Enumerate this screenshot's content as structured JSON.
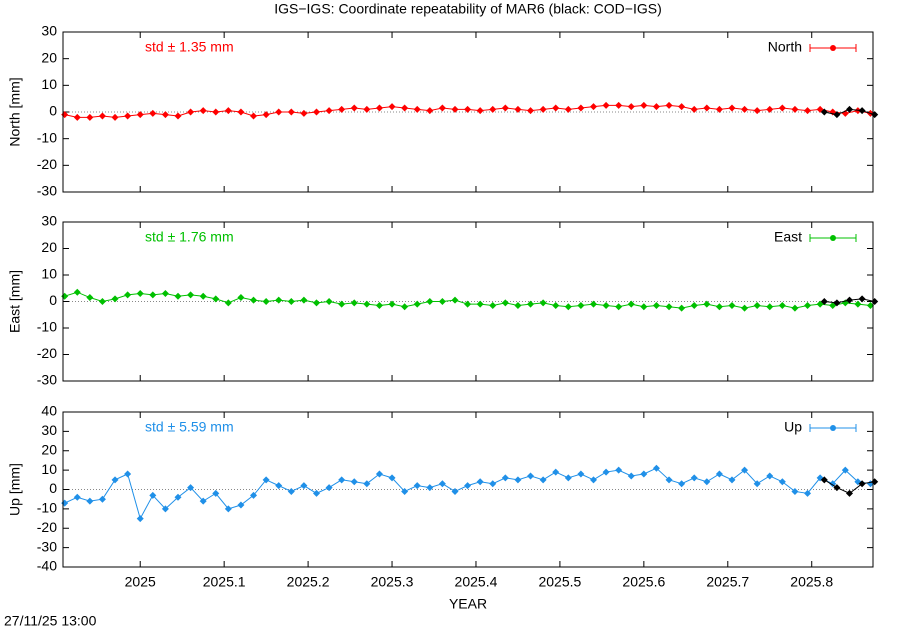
{
  "title": "IGS−IGS: Coordinate repeatability of MAR6 (black: COD−IGS)",
  "timestamp": "27/11/25 13:00",
  "chart_data": [
    {
      "type": "line",
      "ylabel": "North [mm]",
      "annotation": "std ± 1.35 mm",
      "legend": "upper right",
      "xlim": [
        2024.908,
        2025.873
      ],
      "xticks": [
        2025,
        2025.1,
        2025.2,
        2025.3,
        2025.4,
        2025.5,
        2025.6,
        2025.7,
        2025.8
      ],
      "show_xtick_labels": false,
      "ylim": [
        -30,
        30
      ],
      "yticks": [
        -30,
        -20,
        -10,
        0,
        10,
        20,
        30
      ],
      "x": [
        2024.91,
        2024.925,
        2024.94,
        2024.955,
        2024.97,
        2024.985,
        2025.0,
        2025.015,
        2025.03,
        2025.045,
        2025.06,
        2025.075,
        2025.09,
        2025.105,
        2025.12,
        2025.135,
        2025.15,
        2025.165,
        2025.18,
        2025.195,
        2025.21,
        2025.225,
        2025.24,
        2025.255,
        2025.27,
        2025.285,
        2025.3,
        2025.315,
        2025.33,
        2025.345,
        2025.36,
        2025.375,
        2025.39,
        2025.405,
        2025.42,
        2025.435,
        2025.45,
        2025.465,
        2025.48,
        2025.495,
        2025.51,
        2025.525,
        2025.54,
        2025.555,
        2025.57,
        2025.585,
        2025.6,
        2025.615,
        2025.63,
        2025.645,
        2025.66,
        2025.675,
        2025.69,
        2025.705,
        2025.72,
        2025.735,
        2025.75,
        2025.765,
        2025.78,
        2025.795,
        2025.81,
        2025.825,
        2025.84,
        2025.855,
        2025.87
      ],
      "series": [
        {
          "name": "North",
          "color": "#ff0000",
          "values": [
            -1,
            -2,
            -2,
            -1.5,
            -2,
            -1.5,
            -1,
            -0.5,
            -1,
            -1.5,
            0,
            0.5,
            0,
            0.5,
            0,
            -1.5,
            -1,
            0,
            0,
            -0.5,
            0,
            0.5,
            1,
            1.5,
            1,
            1.5,
            2,
            1.5,
            1,
            0.5,
            1.5,
            1,
            1,
            0.5,
            1,
            1.5,
            1,
            0.5,
            1,
            1.5,
            1,
            1.5,
            2,
            2.5,
            2.5,
            2,
            2.5,
            2,
            2.5,
            2,
            1,
            1.5,
            1,
            1.5,
            1,
            0.5,
            1,
            1.5,
            1,
            0.5,
            1,
            0,
            -0.5,
            0.5,
            -0.5
          ]
        },
        {
          "color": "#000000",
          "x": [
            2025.815,
            2025.83,
            2025.845,
            2025.86,
            2025.875
          ],
          "values": [
            0,
            -1,
            1,
            0.5,
            -1
          ]
        }
      ]
    },
    {
      "type": "line",
      "ylabel": "East [mm]",
      "annotation": "std ± 1.76 mm",
      "legend": "upper right",
      "xlim": [
        2024.908,
        2025.873
      ],
      "xticks": [
        2025,
        2025.1,
        2025.2,
        2025.3,
        2025.4,
        2025.5,
        2025.6,
        2025.7,
        2025.8
      ],
      "show_xtick_labels": false,
      "ylim": [
        -30,
        30
      ],
      "yticks": [
        -30,
        -20,
        -10,
        0,
        10,
        20,
        30
      ],
      "x": [
        2024.91,
        2024.925,
        2024.94,
        2024.955,
        2024.97,
        2024.985,
        2025.0,
        2025.015,
        2025.03,
        2025.045,
        2025.06,
        2025.075,
        2025.09,
        2025.105,
        2025.12,
        2025.135,
        2025.15,
        2025.165,
        2025.18,
        2025.195,
        2025.21,
        2025.225,
        2025.24,
        2025.255,
        2025.27,
        2025.285,
        2025.3,
        2025.315,
        2025.33,
        2025.345,
        2025.36,
        2025.375,
        2025.39,
        2025.405,
        2025.42,
        2025.435,
        2025.45,
        2025.465,
        2025.48,
        2025.495,
        2025.51,
        2025.525,
        2025.54,
        2025.555,
        2025.57,
        2025.585,
        2025.6,
        2025.615,
        2025.63,
        2025.645,
        2025.66,
        2025.675,
        2025.69,
        2025.705,
        2025.72,
        2025.735,
        2025.75,
        2025.765,
        2025.78,
        2025.795,
        2025.81,
        2025.825,
        2025.84,
        2025.855,
        2025.87
      ],
      "series": [
        {
          "name": "East",
          "color": "#00c000",
          "values": [
            2,
            3.5,
            1.5,
            0,
            1,
            2.5,
            3,
            2.5,
            3,
            2,
            2.5,
            2,
            1,
            -0.5,
            1.5,
            0.5,
            0,
            0.5,
            0,
            0.5,
            -0.5,
            0,
            -1,
            -0.5,
            -1,
            -1.5,
            -1,
            -2,
            -1,
            0,
            0,
            0.5,
            -1,
            -1,
            -1.5,
            -0.5,
            -1.5,
            -1,
            -0.5,
            -1.5,
            -2,
            -1.5,
            -1,
            -1.5,
            -2,
            -1,
            -2,
            -1.5,
            -2,
            -2.5,
            -1.5,
            -1,
            -2,
            -1.5,
            -2.5,
            -1.5,
            -2,
            -1.5,
            -2.5,
            -1.5,
            -1,
            -1.5,
            -0.5,
            -1,
            -1.5
          ]
        },
        {
          "color": "#000000",
          "x": [
            2025.815,
            2025.83,
            2025.845,
            2025.86,
            2025.875
          ],
          "values": [
            0,
            -0.5,
            0.5,
            1,
            0
          ]
        }
      ]
    },
    {
      "type": "line",
      "ylabel": "Up [mm]",
      "annotation": "std ± 5.59 mm",
      "legend": "upper right",
      "xlabel": "YEAR",
      "xlim": [
        2024.908,
        2025.873
      ],
      "xticks": [
        2025,
        2025.1,
        2025.2,
        2025.3,
        2025.4,
        2025.5,
        2025.6,
        2025.7,
        2025.8
      ],
      "show_xtick_labels": true,
      "ylim": [
        -40,
        40
      ],
      "yticks": [
        -40,
        -30,
        -20,
        -10,
        0,
        10,
        20,
        30,
        40
      ],
      "x": [
        2024.91,
        2024.925,
        2024.94,
        2024.955,
        2024.97,
        2024.985,
        2025.0,
        2025.015,
        2025.03,
        2025.045,
        2025.06,
        2025.075,
        2025.09,
        2025.105,
        2025.12,
        2025.135,
        2025.15,
        2025.165,
        2025.18,
        2025.195,
        2025.21,
        2025.225,
        2025.24,
        2025.255,
        2025.27,
        2025.285,
        2025.3,
        2025.315,
        2025.33,
        2025.345,
        2025.36,
        2025.375,
        2025.39,
        2025.405,
        2025.42,
        2025.435,
        2025.45,
        2025.465,
        2025.48,
        2025.495,
        2025.51,
        2025.525,
        2025.54,
        2025.555,
        2025.57,
        2025.585,
        2025.6,
        2025.615,
        2025.63,
        2025.645,
        2025.66,
        2025.675,
        2025.69,
        2025.705,
        2025.72,
        2025.735,
        2025.75,
        2025.765,
        2025.78,
        2025.795,
        2025.81,
        2025.825,
        2025.84,
        2025.855,
        2025.87
      ],
      "series": [
        {
          "name": "Up",
          "color": "#2090e8",
          "values": [
            -7,
            -4,
            -6,
            -5,
            5,
            8,
            -15,
            -3,
            -10,
            -4,
            1,
            -6,
            -2,
            -10,
            -8,
            -3,
            5,
            2,
            -1,
            2,
            -2,
            1,
            5,
            4,
            3,
            8,
            6,
            -1,
            2,
            1,
            3,
            -1,
            2,
            4,
            3,
            6,
            5,
            7,
            5,
            9,
            6,
            8,
            5,
            9,
            10,
            7,
            8,
            11,
            5,
            3,
            6,
            4,
            8,
            5,
            10,
            3,
            7,
            4,
            -1,
            -2,
            6,
            3,
            10,
            4,
            3
          ]
        },
        {
          "color": "#000000",
          "x": [
            2025.815,
            2025.83,
            2025.845,
            2025.86,
            2025.875
          ],
          "values": [
            5,
            1,
            -2,
            3,
            4
          ]
        }
      ]
    }
  ]
}
